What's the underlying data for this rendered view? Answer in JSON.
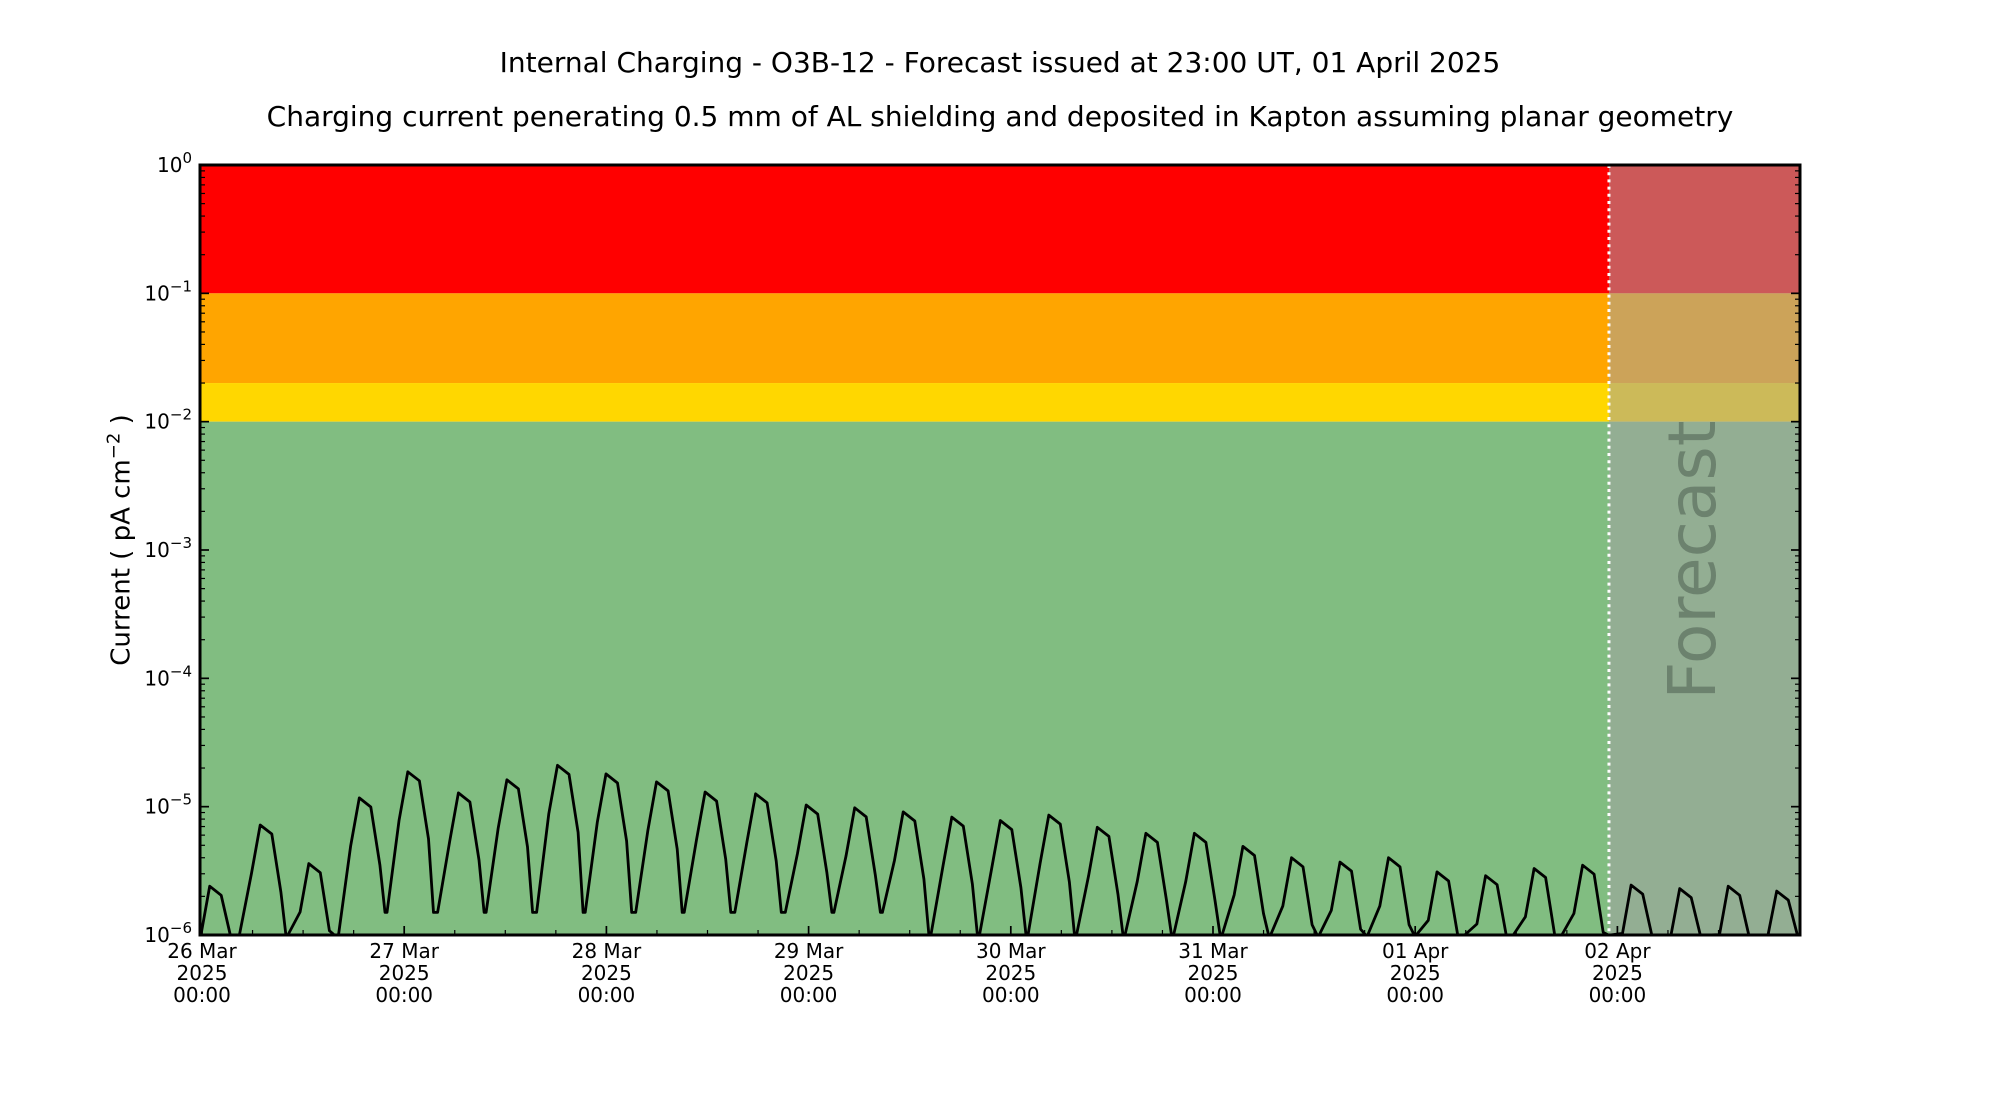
{
  "header": {
    "title": "Internal Charging - O3B-12 - Forecast issued at 23:00 UT, 01 April 2025",
    "subtitle": "Charging current penerating 0.5 mm of AL shielding and deposited in Kapton assuming planar geometry"
  },
  "axes": {
    "y_label": {
      "prefix": "Current ( pA cm",
      "superscript": "−2",
      "suffix": " )"
    },
    "y_ticks": [
      {
        "mantissa": "10",
        "exponent": "0",
        "value": 1
      },
      {
        "mantissa": "10",
        "exponent": "−1",
        "value": 0.1
      },
      {
        "mantissa": "10",
        "exponent": "−2",
        "value": 0.01
      },
      {
        "mantissa": "10",
        "exponent": "−3",
        "value": 0.001
      },
      {
        "mantissa": "10",
        "exponent": "−4",
        "value": 0.0001
      },
      {
        "mantissa": "10",
        "exponent": "−5",
        "value": 1e-05
      },
      {
        "mantissa": "10",
        "exponent": "−6",
        "value": 1e-06
      }
    ],
    "x_ticks": [
      {
        "day_offset": 0,
        "lines": [
          "26 Mar",
          "2025",
          "00:00"
        ]
      },
      {
        "day_offset": 1,
        "lines": [
          "27 Mar",
          "2025",
          "00:00"
        ]
      },
      {
        "day_offset": 2,
        "lines": [
          "28 Mar",
          "2025",
          "00:00"
        ]
      },
      {
        "day_offset": 3,
        "lines": [
          "29 Mar",
          "2025",
          "00:00"
        ]
      },
      {
        "day_offset": 4,
        "lines": [
          "30 Mar",
          "2025",
          "00:00"
        ]
      },
      {
        "day_offset": 5,
        "lines": [
          "31 Mar",
          "2025",
          "00:00"
        ]
      },
      {
        "day_offset": 6,
        "lines": [
          "01 Apr",
          "2025",
          "00:00"
        ]
      },
      {
        "day_offset": 7,
        "lines": [
          "02 Apr",
          "2025",
          "00:00"
        ]
      }
    ]
  },
  "forecast": {
    "label": "Forecast",
    "start_day_offset": 6.9583,
    "divider_color": "#ffffff",
    "overlay_color": "rgba(162,162,162,0.55)",
    "label_color": "#46564a"
  },
  "chart_data": {
    "type": "line",
    "title": "Internal Charging - O3B-12 - Forecast issued at 23:00 UT, 01 April 2025",
    "subtitle": "Charging current penerating 0.5 mm of AL shielding and deposited in Kapton assuming planar geometry",
    "ylabel": "Current ( pA cm^-2 )",
    "xlabel": "",
    "yscale": "log",
    "ylim": [
      1e-06,
      1
    ],
    "x_start": "26 Mar 2025 00:00",
    "x_end": "02 Apr 2025 ~21:40",
    "x_tick_interval": "1 day",
    "x_tick_labels": [
      "26 Mar 2025 00:00",
      "27 Mar 2025 00:00",
      "28 Mar 2025 00:00",
      "29 Mar 2025 00:00",
      "30 Mar 2025 00:00",
      "31 Mar 2025 00:00",
      "01 Apr 2025 00:00",
      "02 Apr 2025 00:00"
    ],
    "grid": false,
    "legend": "none",
    "threshold_bands": [
      {
        "name": "red",
        "color": "#ff0000",
        "range_pA_cm2": [
          0.1,
          1
        ]
      },
      {
        "name": "orange",
        "color": "#ffa500",
        "range_pA_cm2": [
          0.02,
          0.1
        ]
      },
      {
        "name": "yellow",
        "color": "#ffd700",
        "range_pA_cm2": [
          0.01,
          0.02
        ]
      },
      {
        "name": "green",
        "color": "#81bd81",
        "range_pA_cm2": [
          1e-06,
          0.01
        ]
      }
    ],
    "forecast_start_days_from_x_start": 6.9583,
    "series": [
      {
        "name": "internal charging current",
        "color": "#000000",
        "baseline_pA_cm2": 1e-06,
        "peak_period_days": 0.24,
        "peaks_day_value_pA_cm2": [
          [
            0.05,
            2.4e-06
          ],
          [
            0.3,
            7.2e-06
          ],
          [
            0.54,
            3.6e-06
          ],
          [
            0.79,
            1.17e-05
          ],
          [
            1.03,
            1.87e-05
          ],
          [
            1.28,
            1.28e-05
          ],
          [
            1.52,
            1.62e-05
          ],
          [
            1.77,
            2.1e-05
          ],
          [
            2.01,
            1.8e-05
          ],
          [
            2.26,
            1.56e-05
          ],
          [
            2.5,
            1.3e-05
          ],
          [
            2.75,
            1.26e-05
          ],
          [
            3.0,
            1.03e-05
          ],
          [
            3.24,
            9.8e-06
          ],
          [
            3.48,
            9.1e-06
          ],
          [
            3.72,
            8.3e-06
          ],
          [
            3.96,
            7.8e-06
          ],
          [
            4.2,
            8.6e-06
          ],
          [
            4.44,
            6.9e-06
          ],
          [
            4.68,
            6.2e-06
          ],
          [
            4.92,
            6.2e-06
          ],
          [
            5.16,
            4.9e-06
          ],
          [
            5.4,
            4e-06
          ],
          [
            5.64,
            3.7e-06
          ],
          [
            5.88,
            4e-06
          ],
          [
            6.12,
            3.1e-06
          ],
          [
            6.36,
            2.9e-06
          ],
          [
            6.6,
            3.3e-06
          ],
          [
            6.84,
            3.5e-06
          ],
          [
            7.08,
            2.45e-06
          ],
          [
            7.32,
            2.3e-06
          ],
          [
            7.56,
            2.4e-06
          ],
          [
            7.8,
            2.2e-06
          ]
        ]
      }
    ]
  }
}
